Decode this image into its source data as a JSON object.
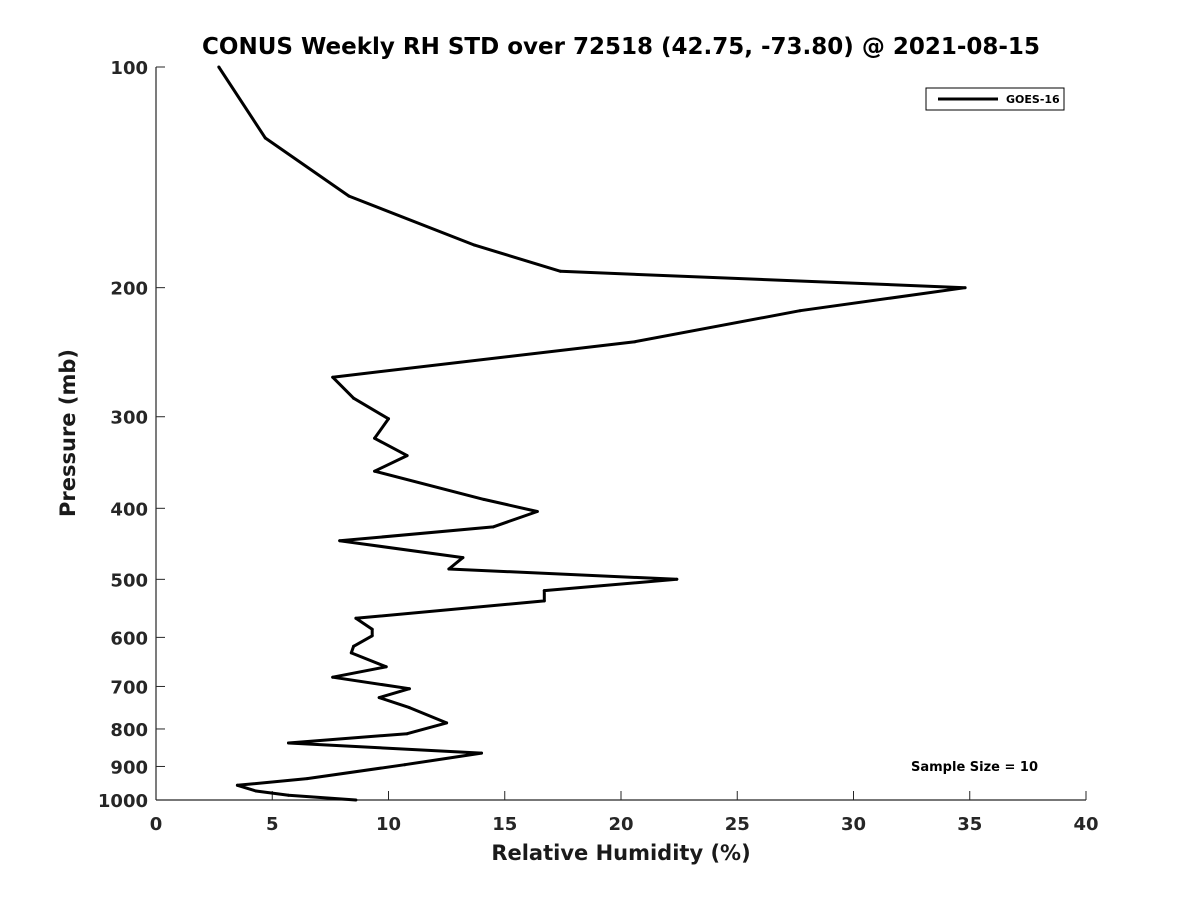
{
  "chart_data": {
    "type": "line",
    "title": "CONUS Weekly RH STD over 72518 (42.75, -73.80) @ 2021-08-15",
    "xlabel": "Relative Humidity (%)",
    "ylabel": "Pressure (mb)",
    "xlim": [
      0,
      40
    ],
    "ylim": [
      100,
      1000
    ],
    "y_scale": "log",
    "y_reversed": true,
    "x_ticks": [
      0,
      5,
      10,
      15,
      20,
      25,
      30,
      35,
      40
    ],
    "y_ticks": [
      100,
      200,
      300,
      400,
      500,
      600,
      700,
      800,
      900,
      1000
    ],
    "grid": false,
    "legend": {
      "position": "top-right"
    },
    "annotation": "Sample Size = 10",
    "series": [
      {
        "name": "GOES-16",
        "color": "#000000",
        "points": [
          [
            2.7,
            100
          ],
          [
            4.7,
            125
          ],
          [
            8.3,
            150
          ],
          [
            13.7,
            175
          ],
          [
            17.4,
            190
          ],
          [
            34.8,
            200
          ],
          [
            27.7,
            215
          ],
          [
            20.6,
            237
          ],
          [
            7.6,
            265
          ],
          [
            8.5,
            283
          ],
          [
            10.0,
            302
          ],
          [
            9.4,
            321
          ],
          [
            10.8,
            339
          ],
          [
            9.4,
            356
          ],
          [
            14.1,
            389
          ],
          [
            16.4,
            404
          ],
          [
            14.5,
            424
          ],
          [
            7.9,
            443
          ],
          [
            13.2,
            467
          ],
          [
            12.6,
            484
          ],
          [
            22.4,
            500
          ],
          [
            16.7,
            518
          ],
          [
            16.7,
            535
          ],
          [
            8.6,
            565
          ],
          [
            9.3,
            585
          ],
          [
            9.3,
            597
          ],
          [
            8.5,
            617
          ],
          [
            8.4,
            630
          ],
          [
            9.9,
            658
          ],
          [
            7.6,
            680
          ],
          [
            10.9,
            705
          ],
          [
            9.6,
            725
          ],
          [
            10.9,
            748
          ],
          [
            12.5,
            785
          ],
          [
            10.8,
            812
          ],
          [
            5.7,
            836
          ],
          [
            14.0,
            863
          ],
          [
            10.7,
            895
          ],
          [
            6.5,
            935
          ],
          [
            3.5,
            955
          ],
          [
            4.3,
            972
          ],
          [
            5.7,
            985
          ],
          [
            8.6,
            1000
          ]
        ]
      }
    ]
  }
}
